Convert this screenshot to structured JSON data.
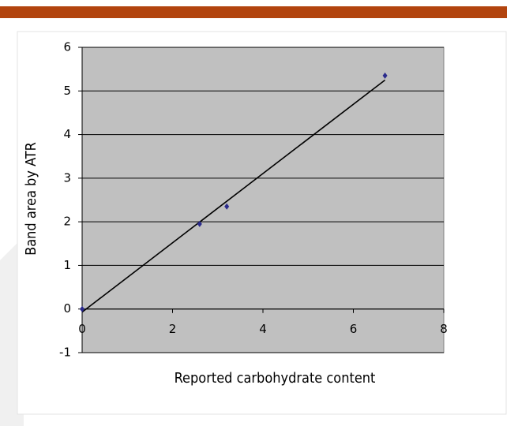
{
  "chart_data": {
    "type": "scatter",
    "x_label": "Reported carbohydrate content",
    "y_label": "Band area by ATR",
    "series": [
      {
        "color": "#2b2b8c",
        "x": [
          0,
          2.6,
          3.2,
          6.7
        ],
        "values": [
          0,
          1.95,
          2.35,
          5.35
        ]
      }
    ],
    "trendline": {
      "color": "#000000",
      "x": [
        0,
        6.7
      ],
      "values": [
        -0.07,
        5.25
      ]
    },
    "xlim": [
      0,
      8
    ],
    "xticks": [
      0,
      2,
      4,
      6,
      8
    ],
    "ylim": [
      -1,
      6
    ],
    "yticks": [
      -1,
      0,
      1,
      2,
      3,
      4,
      5,
      6
    ],
    "grid": true,
    "plot_background": "#c0c0c0"
  }
}
